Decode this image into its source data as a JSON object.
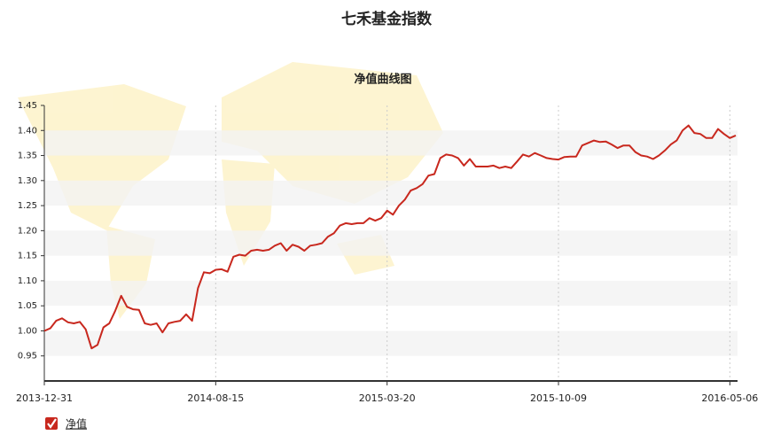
{
  "chart_data": {
    "type": "line",
    "title": "七禾基金指数",
    "subtitle": "净值曲线图",
    "categories": [
      "2013-12-31",
      null,
      null,
      null,
      null,
      null,
      null,
      null,
      null,
      null,
      null,
      null,
      null,
      null,
      null,
      null,
      null,
      null,
      null,
      null,
      null,
      null,
      null,
      null,
      null,
      null,
      null,
      null,
      null,
      "2014-08-15",
      null,
      null,
      null,
      null,
      null,
      null,
      null,
      null,
      null,
      null,
      null,
      null,
      null,
      null,
      null,
      null,
      null,
      null,
      null,
      null,
      null,
      null,
      null,
      null,
      null,
      null,
      null,
      null,
      "2015-03-20",
      null,
      null,
      null,
      null,
      null,
      null,
      null,
      null,
      null,
      null,
      null,
      null,
      null,
      null,
      null,
      null,
      null,
      null,
      null,
      null,
      null,
      null,
      null,
      null,
      null,
      null,
      null,
      null,
      "2015-10-09",
      null,
      null,
      null,
      null,
      null,
      null,
      null,
      null,
      null,
      null,
      null,
      null,
      null,
      null,
      null,
      null,
      null,
      null,
      null,
      null,
      null,
      null,
      null,
      null,
      null,
      null,
      null,
      null,
      "2016-05-06",
      null
    ],
    "series": [
      {
        "name": "净值",
        "color": "#c8281e",
        "values": [
          1.0,
          1.005,
          1.02,
          1.025,
          1.017,
          1.015,
          1.018,
          1.003,
          0.965,
          0.972,
          1.007,
          1.015,
          1.04,
          1.07,
          1.048,
          1.043,
          1.042,
          1.015,
          1.012,
          1.015,
          0.997,
          1.015,
          1.018,
          1.02,
          1.033,
          1.02,
          1.085,
          1.117,
          1.115,
          1.122,
          1.123,
          1.118,
          1.148,
          1.152,
          1.15,
          1.16,
          1.162,
          1.16,
          1.162,
          1.17,
          1.175,
          1.16,
          1.172,
          1.168,
          1.16,
          1.17,
          1.172,
          1.175,
          1.188,
          1.195,
          1.21,
          1.215,
          1.213,
          1.215,
          1.215,
          1.225,
          1.22,
          1.225,
          1.24,
          1.232,
          1.25,
          1.262,
          1.28,
          1.285,
          1.293,
          1.31,
          1.313,
          1.345,
          1.352,
          1.35,
          1.345,
          1.33,
          1.343,
          1.328,
          1.328,
          1.328,
          1.33,
          1.325,
          1.328,
          1.325,
          1.338,
          1.352,
          1.348,
          1.355,
          1.35,
          1.345,
          1.343,
          1.342,
          1.347,
          1.348,
          1.348,
          1.37,
          1.375,
          1.38,
          1.377,
          1.378,
          1.372,
          1.365,
          1.37,
          1.37,
          1.357,
          1.35,
          1.348,
          1.343,
          1.35,
          1.36,
          1.372,
          1.38,
          1.4,
          1.41,
          1.395,
          1.393,
          1.385,
          1.385,
          1.403,
          1.393,
          1.385,
          1.39
        ]
      }
    ],
    "ylim": [
      0.9,
      1.45
    ],
    "yticks": [
      0.95,
      {
        "value": 1,
        "label": "1.00"
      },
      1.05,
      {
        "value": 1.1,
        "label": "1.10"
      },
      1.15,
      {
        "value": 1.2,
        "label": "1.20"
      },
      1.25,
      {
        "value": 1.3,
        "label": "1.30"
      },
      1.35,
      {
        "value": 1.4,
        "label": "1.40"
      },
      1.45
    ],
    "grid": true
  }
}
